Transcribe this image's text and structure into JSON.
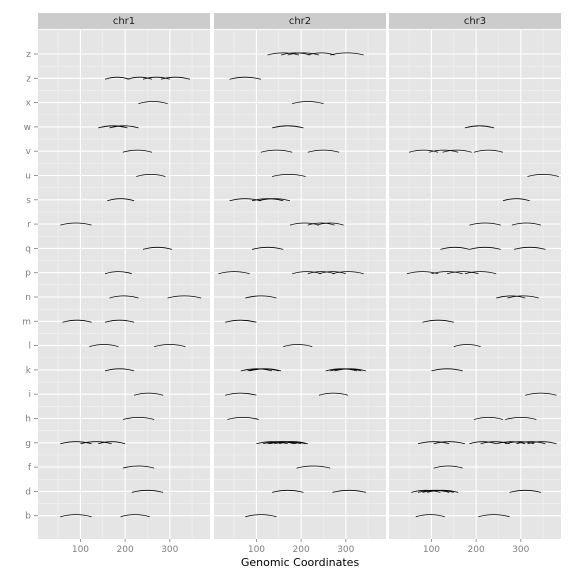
{
  "chart_data": {
    "type": "arc",
    "xlabel": "Genomic Coordinates",
    "ylabel": "",
    "title": "",
    "facets": [
      "chr1",
      "chr2",
      "chr3"
    ],
    "categories": [
      "b",
      "d",
      "f",
      "g",
      "h",
      "i",
      "k",
      "l",
      "m",
      "n",
      "p",
      "q",
      "r",
      "s",
      "u",
      "v",
      "w",
      "x",
      "z",
      "z"
    ],
    "xlim": [
      5,
      390
    ],
    "xticks": [
      100,
      200,
      300
    ],
    "grid": true,
    "colors": {
      "panel": "#e5e5e5",
      "strip": "#cccccc",
      "grid_major": "#ffffff",
      "grid_minor": "#f2f2f2",
      "arc": "#000000"
    },
    "arcs": [
      {
        "facet": "chr1",
        "row": 19,
        "segments": []
      },
      {
        "facet": "chr1",
        "row": 18,
        "segments": [
          [
            155,
            210
          ],
          [
            205,
            260
          ],
          [
            240,
            300
          ],
          [
            280,
            345
          ]
        ]
      },
      {
        "facet": "chr1",
        "row": 17,
        "segments": [
          [
            230,
            295
          ]
        ]
      },
      {
        "facet": "chr1",
        "row": 16,
        "segments": [
          [
            140,
            205
          ],
          [
            165,
            230
          ]
        ]
      },
      {
        "facet": "chr1",
        "row": 15,
        "segments": [
          [
            195,
            260
          ]
        ]
      },
      {
        "facet": "chr1",
        "row": 14,
        "segments": [
          [
            225,
            290
          ]
        ]
      },
      {
        "facet": "chr1",
        "row": 13,
        "segments": [
          [
            160,
            220
          ]
        ]
      },
      {
        "facet": "chr1",
        "row": 12,
        "segments": [
          [
            55,
            125
          ]
        ]
      },
      {
        "facet": "chr1",
        "row": 11,
        "segments": [
          [
            240,
            305
          ]
        ]
      },
      {
        "facet": "chr1",
        "row": 10,
        "segments": [
          [
            155,
            215
          ]
        ]
      },
      {
        "facet": "chr1",
        "row": 9,
        "segments": [
          [
            165,
            230
          ],
          [
            295,
            370
          ]
        ]
      },
      {
        "facet": "chr1",
        "row": 8,
        "segments": [
          [
            60,
            125
          ],
          [
            155,
            220
          ]
        ]
      },
      {
        "facet": "chr1",
        "row": 7,
        "segments": [
          [
            120,
            185
          ],
          [
            265,
            335
          ]
        ]
      },
      {
        "facet": "chr1",
        "row": 6,
        "segments": [
          [
            155,
            220
          ]
        ]
      },
      {
        "facet": "chr1",
        "row": 5,
        "segments": [
          [
            220,
            285
          ]
        ]
      },
      {
        "facet": "chr1",
        "row": 4,
        "segments": [
          [
            195,
            265
          ]
        ]
      },
      {
        "facet": "chr1",
        "row": 3,
        "segments": [
          [
            55,
            125
          ],
          [
            100,
            170
          ],
          [
            140,
            200
          ]
        ]
      },
      {
        "facet": "chr1",
        "row": 2,
        "segments": [
          [
            195,
            265
          ]
        ]
      },
      {
        "facet": "chr1",
        "row": 1,
        "segments": [
          [
            215,
            285
          ]
        ]
      },
      {
        "facet": "chr1",
        "row": 0,
        "segments": [
          [
            55,
            125
          ],
          [
            190,
            255
          ]
        ]
      },
      {
        "facet": "chr2",
        "row": 19,
        "segments": [
          [
            125,
            195
          ],
          [
            155,
            220
          ],
          [
            170,
            240
          ],
          [
            215,
            275
          ],
          [
            265,
            340
          ]
        ]
      },
      {
        "facet": "chr2",
        "row": 18,
        "segments": [
          [
            40,
            110
          ]
        ]
      },
      {
        "facet": "chr2",
        "row": 17,
        "segments": [
          [
            180,
            250
          ]
        ]
      },
      {
        "facet": "chr2",
        "row": 16,
        "segments": [
          [
            135,
            205
          ]
        ]
      },
      {
        "facet": "chr2",
        "row": 15,
        "segments": [
          [
            110,
            180
          ],
          [
            215,
            285
          ]
        ]
      },
      {
        "facet": "chr2",
        "row": 14,
        "segments": [
          [
            135,
            210
          ]
        ]
      },
      {
        "facet": "chr2",
        "row": 13,
        "segments": [
          [
            40,
            110
          ],
          [
            90,
            160
          ],
          [
            105,
            175
          ]
        ]
      },
      {
        "facet": "chr2",
        "row": 12,
        "segments": [
          [
            175,
            240
          ],
          [
            215,
            275
          ],
          [
            235,
            295
          ]
        ]
      },
      {
        "facet": "chr2",
        "row": 11,
        "segments": [
          [
            90,
            160
          ]
        ]
      },
      {
        "facet": "chr2",
        "row": 10,
        "segments": [
          [
            15,
            85
          ],
          [
            180,
            245
          ],
          [
            215,
            275
          ],
          [
            240,
            300
          ],
          [
            270,
            340
          ]
        ]
      },
      {
        "facet": "chr2",
        "row": 9,
        "segments": [
          [
            75,
            145
          ]
        ]
      },
      {
        "facet": "chr2",
        "row": 8,
        "segments": [
          [
            30,
            100
          ]
        ]
      },
      {
        "facet": "chr2",
        "row": 7,
        "segments": [
          [
            160,
            225
          ]
        ]
      },
      {
        "facet": "chr2",
        "row": 6,
        "segments": [
          [
            65,
            135
          ],
          [
            80,
            150
          ],
          [
            85,
            155
          ],
          [
            255,
            325
          ],
          [
            265,
            335
          ],
          [
            275,
            345
          ]
        ]
      },
      {
        "facet": "chr2",
        "row": 5,
        "segments": [
          [
            30,
            100
          ],
          [
            240,
            305
          ]
        ]
      },
      {
        "facet": "chr2",
        "row": 4,
        "segments": [
          [
            35,
            105
          ]
        ]
      },
      {
        "facet": "chr2",
        "row": 3,
        "segments": [
          [
            100,
            170
          ],
          [
            115,
            185
          ],
          [
            125,
            190
          ],
          [
            130,
            200
          ],
          [
            140,
            210
          ],
          [
            150,
            215
          ]
        ]
      },
      {
        "facet": "chr2",
        "row": 2,
        "segments": [
          [
            190,
            265
          ]
        ]
      },
      {
        "facet": "chr2",
        "row": 1,
        "segments": [
          [
            135,
            205
          ],
          [
            270,
            345
          ]
        ]
      },
      {
        "facet": "chr2",
        "row": 0,
        "segments": [
          [
            75,
            145
          ]
        ]
      },
      {
        "facet": "chr3",
        "row": 19,
        "segments": []
      },
      {
        "facet": "chr3",
        "row": 18,
        "segments": []
      },
      {
        "facet": "chr3",
        "row": 17,
        "segments": []
      },
      {
        "facet": "chr3",
        "row": 16,
        "segments": [
          [
            175,
            240
          ]
        ]
      },
      {
        "facet": "chr3",
        "row": 15,
        "segments": [
          [
            50,
            115
          ],
          [
            95,
            160
          ],
          [
            125,
            190
          ],
          [
            195,
            260
          ]
        ]
      },
      {
        "facet": "chr3",
        "row": 14,
        "segments": [
          [
            315,
            385
          ]
        ]
      },
      {
        "facet": "chr3",
        "row": 13,
        "segments": [
          [
            260,
            320
          ]
        ]
      },
      {
        "facet": "chr3",
        "row": 12,
        "segments": [
          [
            185,
            255
          ],
          [
            280,
            345
          ]
        ]
      },
      {
        "facet": "chr3",
        "row": 11,
        "segments": [
          [
            120,
            185
          ],
          [
            185,
            255
          ],
          [
            285,
            355
          ]
        ]
      },
      {
        "facet": "chr3",
        "row": 10,
        "segments": [
          [
            45,
            115
          ],
          [
            100,
            170
          ],
          [
            135,
            205
          ],
          [
            175,
            245
          ]
        ]
      },
      {
        "facet": "chr3",
        "row": 9,
        "segments": [
          [
            245,
            310
          ],
          [
            270,
            340
          ]
        ]
      },
      {
        "facet": "chr3",
        "row": 8,
        "segments": [
          [
            80,
            150
          ]
        ]
      },
      {
        "facet": "chr3",
        "row": 7,
        "segments": [
          [
            150,
            210
          ]
        ]
      },
      {
        "facet": "chr3",
        "row": 6,
        "segments": [
          [
            100,
            170
          ]
        ]
      },
      {
        "facet": "chr3",
        "row": 5,
        "segments": [
          [
            310,
            380
          ]
        ]
      },
      {
        "facet": "chr3",
        "row": 4,
        "segments": [
          [
            195,
            260
          ],
          [
            265,
            335
          ]
        ]
      },
      {
        "facet": "chr3",
        "row": 3,
        "segments": [
          [
            70,
            140
          ],
          [
            105,
            175
          ],
          [
            185,
            245
          ],
          [
            210,
            275
          ],
          [
            245,
            310
          ],
          [
            265,
            330
          ],
          [
            290,
            355
          ],
          [
            315,
            380
          ]
        ]
      },
      {
        "facet": "chr3",
        "row": 2,
        "segments": [
          [
            105,
            170
          ]
        ]
      },
      {
        "facet": "chr3",
        "row": 1,
        "segments": [
          [
            55,
            120
          ],
          [
            70,
            140
          ],
          [
            80,
            150
          ],
          [
            90,
            160
          ],
          [
            275,
            345
          ]
        ]
      },
      {
        "facet": "chr3",
        "row": 0,
        "segments": [
          [
            65,
            130
          ],
          [
            205,
            275
          ]
        ]
      }
    ]
  }
}
